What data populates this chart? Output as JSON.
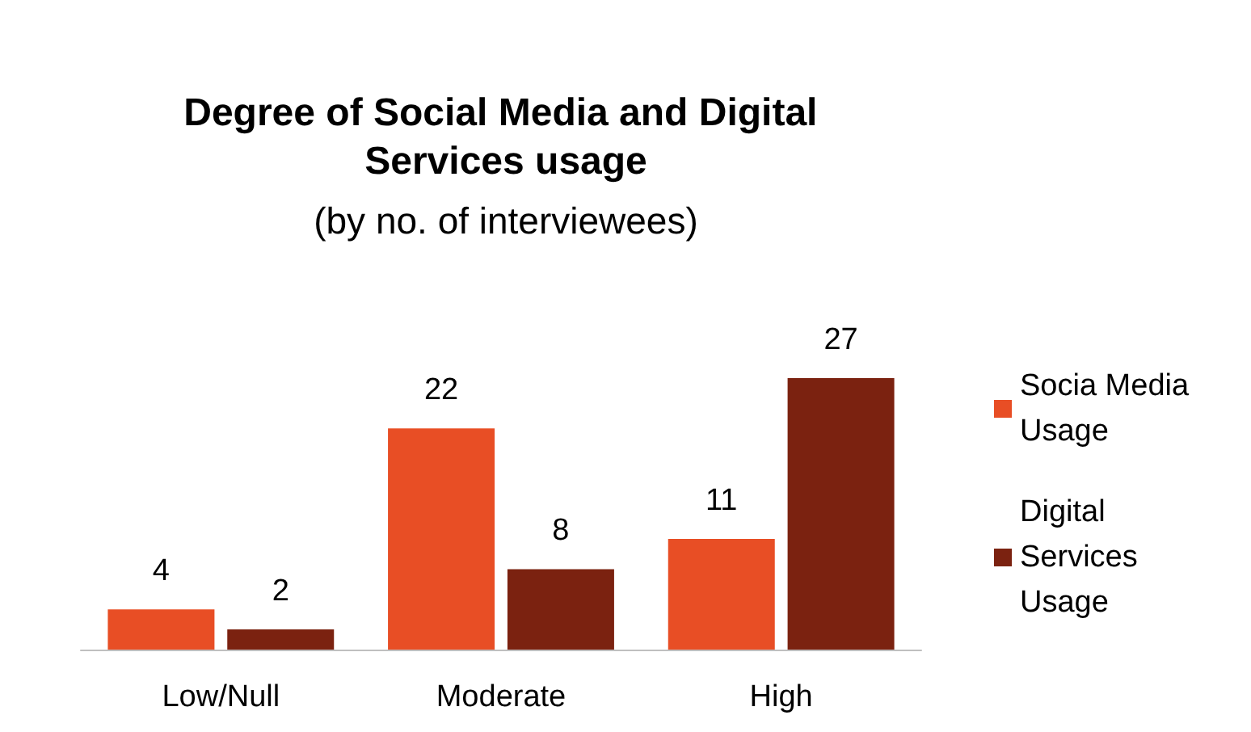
{
  "chart_data": {
    "type": "bar",
    "title": "Degree of Social Media and Digital Services usage",
    "subtitle": "(by no. of interviewees)",
    "categories": [
      "Low/Null",
      "Moderate",
      "High"
    ],
    "series": [
      {
        "name": "Socia Media Usage",
        "color": "#e84e25",
        "values": [
          4,
          22,
          11
        ]
      },
      {
        "name": "Digital Services Usage",
        "color": "#7b2210",
        "values": [
          2,
          8,
          27
        ]
      }
    ],
    "data_labels": true,
    "legend": "right"
  }
}
